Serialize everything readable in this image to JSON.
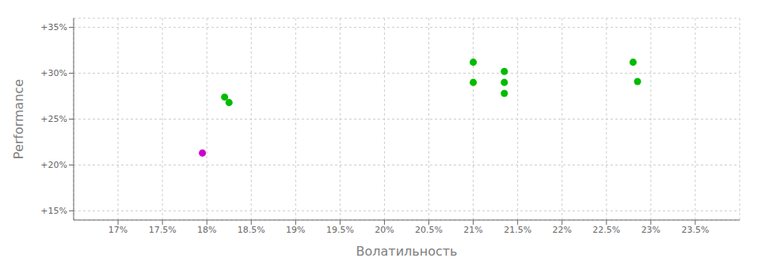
{
  "chart_data": {
    "type": "scatter",
    "xlabel": "Волатильность",
    "ylabel": "Performance",
    "xlim": [
      0.165,
      0.24
    ],
    "ylim": [
      0.14,
      0.36
    ],
    "xticks": [
      {
        "value": 0.17,
        "label": "17%"
      },
      {
        "value": 0.175,
        "label": "17.5%"
      },
      {
        "value": 0.18,
        "label": "18%"
      },
      {
        "value": 0.185,
        "label": "18.5%"
      },
      {
        "value": 0.19,
        "label": "19%"
      },
      {
        "value": 0.195,
        "label": "19.5%"
      },
      {
        "value": 0.2,
        "label": "20%"
      },
      {
        "value": 0.205,
        "label": "20.5%"
      },
      {
        "value": 0.21,
        "label": "21%"
      },
      {
        "value": 0.215,
        "label": "21.5%"
      },
      {
        "value": 0.22,
        "label": "22%"
      },
      {
        "value": 0.225,
        "label": "22.5%"
      },
      {
        "value": 0.23,
        "label": "23%"
      },
      {
        "value": 0.235,
        "label": "23.5%"
      }
    ],
    "yticks": [
      {
        "value": 0.15,
        "label": "+15%"
      },
      {
        "value": 0.2,
        "label": "+20%"
      },
      {
        "value": 0.25,
        "label": "+25%"
      },
      {
        "value": 0.3,
        "label": "+30%"
      },
      {
        "value": 0.35,
        "label": "+35%"
      }
    ],
    "grid": true,
    "series": [
      {
        "color": "#00bb00",
        "x": [
          0.182,
          0.1825,
          0.21,
          0.21,
          0.2135,
          0.2135,
          0.2135,
          0.228,
          0.2285
        ],
        "values": [
          0.274,
          0.268,
          0.312,
          0.29,
          0.29,
          0.302,
          0.278,
          0.312,
          0.291
        ]
      },
      {
        "color": "#cc00cc",
        "x": [
          0.1795
        ],
        "values": [
          0.213
        ]
      }
    ]
  }
}
